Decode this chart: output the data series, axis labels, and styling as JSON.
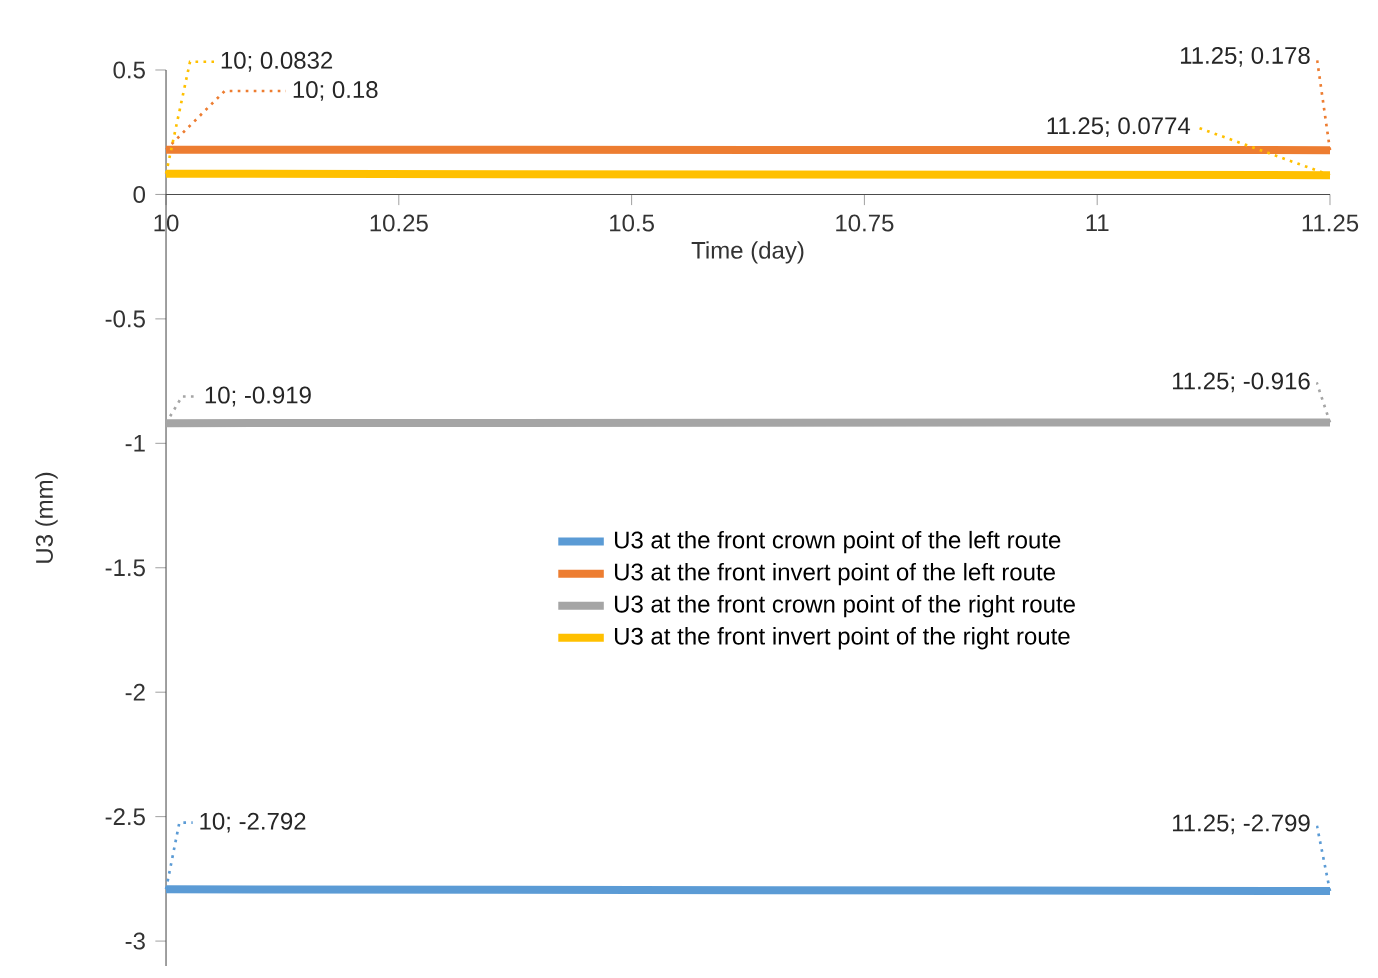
{
  "chart_data": {
    "type": "line",
    "xlabel": "Time (day)",
    "ylabel": "U3 (mm)",
    "xlim": [
      10,
      11.25
    ],
    "ylim": [
      -3.1,
      0.5
    ],
    "xticks": [
      10,
      10.25,
      10.5,
      10.75,
      11,
      11.25
    ],
    "yticks": [
      -3,
      -2.5,
      -2,
      -1.5,
      -1,
      -0.5,
      0,
      0.5
    ],
    "legend": "center",
    "grid": false,
    "marker": "none",
    "line_style": "solid",
    "x": [
      10,
      11.25
    ],
    "series": [
      {
        "name": "U3 at the front crown point of the left route",
        "color": "#5b9bd5",
        "values": [
          -2.792,
          -2.799
        ],
        "value_labels": [
          "10; -2.792",
          "11.25; -2.799"
        ]
      },
      {
        "name": "U3 at the front invert point of the left route",
        "color": "#ed7d31",
        "values": [
          0.18,
          0.178
        ],
        "value_labels": [
          "10; 0.18",
          "11.25; 0.178"
        ]
      },
      {
        "name": "U3 at the front crown point of the right route",
        "color": "#a5a5a5",
        "values": [
          -0.919,
          -0.916
        ],
        "value_labels": [
          "10; -0.919",
          "11.25; -0.916"
        ]
      },
      {
        "name": "U3 at the front invert point of the right route",
        "color": "#ffc000",
        "values": [
          0.0832,
          0.0774
        ],
        "value_labels": [
          "10; 0.0832",
          "11.25; 0.0774"
        ]
      }
    ]
  }
}
